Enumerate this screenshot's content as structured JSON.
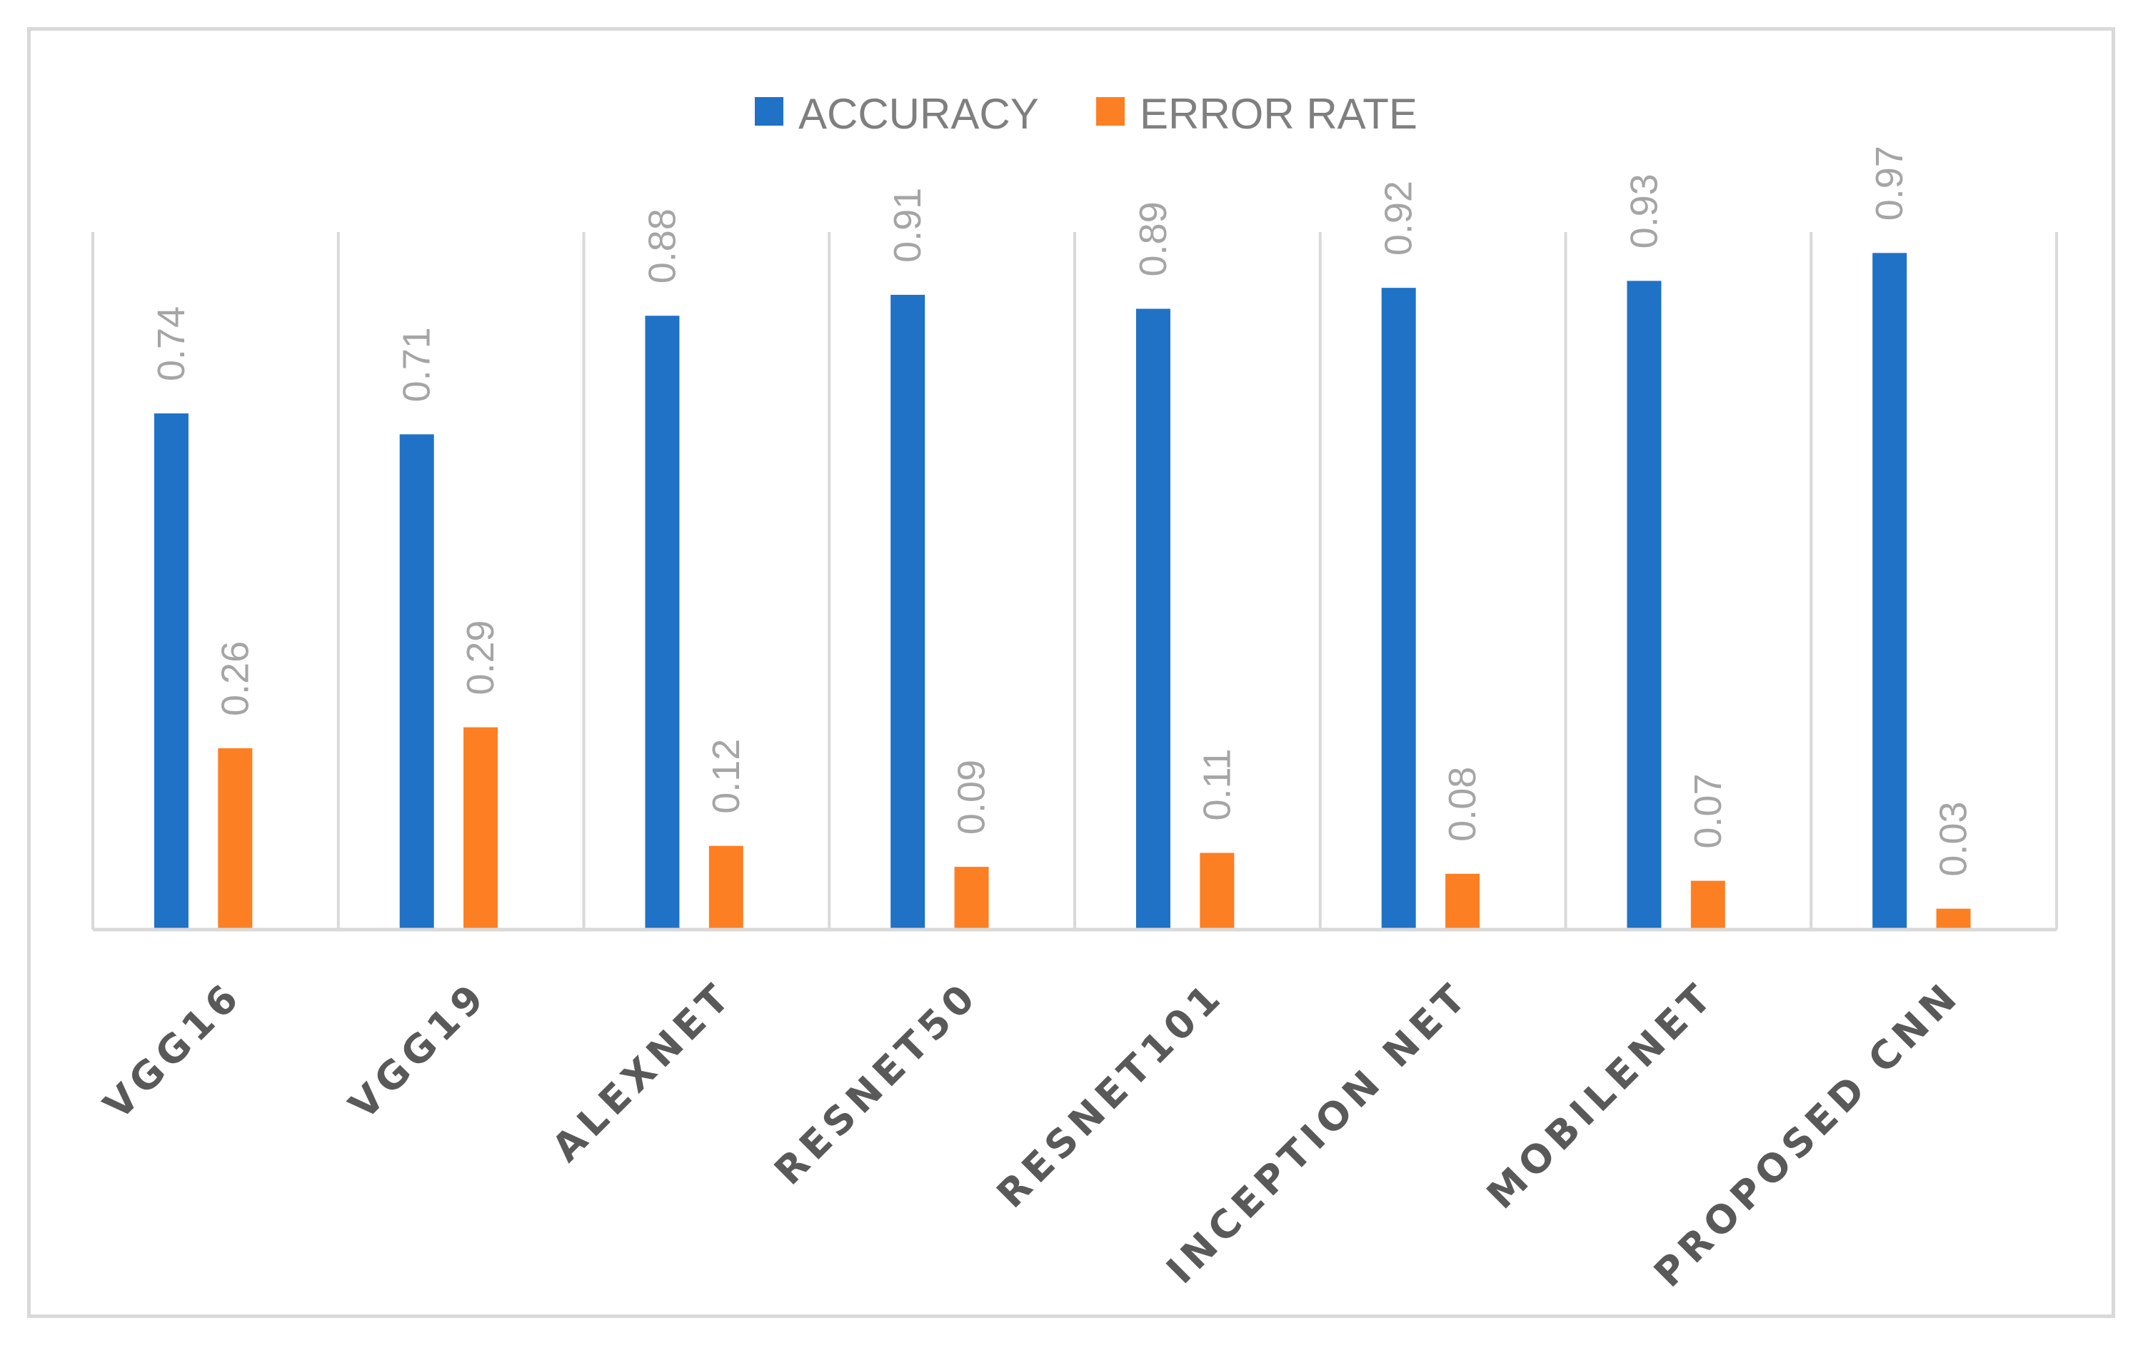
{
  "chart_data": {
    "type": "bar",
    "title": "",
    "xlabel": "",
    "ylabel": "",
    "ylim": [
      0,
      1
    ],
    "grid": "vertical separators between categories",
    "legend": "top-center",
    "categories": [
      "VGG16",
      "VGG19",
      "ALEXNET",
      "RESNET50",
      "RESNET101",
      "INCEPTION NET",
      "MOBILENET",
      "PROPOSED CNN"
    ],
    "series": [
      {
        "name": "ACCURACY",
        "color": "#1f72c6",
        "values": [
          0.74,
          0.71,
          0.88,
          0.91,
          0.89,
          0.92,
          0.93,
          0.97
        ]
      },
      {
        "name": "ERROR RATE",
        "color": "#fd7f23",
        "values": [
          0.26,
          0.29,
          0.12,
          0.09,
          0.11,
          0.08,
          0.07,
          0.03
        ]
      }
    ]
  }
}
